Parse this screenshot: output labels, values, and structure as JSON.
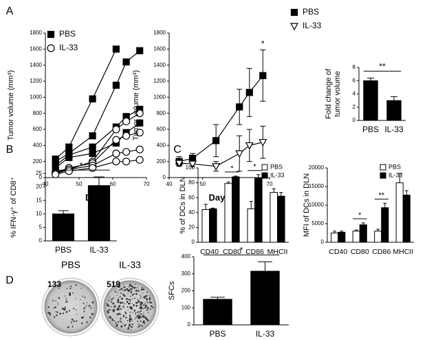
{
  "chart_data": [
    {
      "type": "line",
      "panel": "A",
      "ylabel": "Tumor volume (mm³)",
      "xlabel": "Days",
      "xlim": [
        40,
        70
      ],
      "xticks": [
        40,
        50,
        60,
        70
      ],
      "ylim": [
        0,
        1800
      ],
      "yticks": [
        0,
        200,
        400,
        600,
        800,
        1000,
        1200,
        1400,
        1600,
        1800
      ],
      "series": [
        {
          "name": "PBS",
          "marker": "filled-square",
          "color": "#000000",
          "subjects": [
            {
              "x": [
                43,
                47,
                54,
                61
              ],
              "values": [
                230,
                380,
                980,
                1600
              ]
            },
            {
              "x": [
                43,
                47,
                54,
                61,
                64,
                68
              ],
              "values": [
                200,
                300,
                520,
                1150,
                1440,
                1580
              ]
            },
            {
              "x": [
                43,
                47,
                54,
                61,
                64,
                68
              ],
              "values": [
                150,
                280,
                380,
                630,
                760,
                850
              ]
            },
            {
              "x": [
                43,
                47,
                54,
                61,
                64,
                68
              ],
              "values": [
                120,
                250,
                300,
                430,
                560,
                680
              ]
            }
          ]
        },
        {
          "name": "IL-33",
          "marker": "open-circle",
          "color": "#000000",
          "subjects": [
            {
              "x": [
                43,
                47,
                54,
                61,
                64,
                68
              ],
              "values": [
                60,
                100,
                200,
                600,
                700,
                800
              ]
            },
            {
              "x": [
                43,
                47,
                54,
                61,
                64,
                68
              ],
              "values": [
                60,
                120,
                180,
                470,
                520,
                560
              ]
            },
            {
              "x": [
                43,
                47,
                54,
                61,
                64,
                68
              ],
              "values": [
                50,
                100,
                150,
                300,
                320,
                350
              ]
            },
            {
              "x": [
                43,
                47,
                54,
                61,
                64,
                68
              ],
              "values": [
                40,
                80,
                120,
                200,
                200,
                220
              ]
            }
          ]
        }
      ]
    },
    {
      "type": "line",
      "ylabel": "Tumor volume (mm³)",
      "xlabel": "Days",
      "xlim": [
        40,
        70
      ],
      "xticks": [
        40,
        50,
        60,
        70
      ],
      "ylim": [
        0,
        1800
      ],
      "yticks": [
        0,
        200,
        400,
        600,
        800,
        1000,
        1200,
        1400,
        1600,
        1800
      ],
      "annotation": "*",
      "series": [
        {
          "name": "PBS",
          "marker": "filled-square",
          "color": "#000000",
          "x": [
            43,
            47,
            54,
            61,
            64,
            68
          ],
          "values": [
            200,
            240,
            460,
            880,
            1060,
            1270
          ],
          "errors": [
            60,
            60,
            200,
            220,
            300,
            320
          ]
        },
        {
          "name": "IL-33",
          "marker": "open-triangle",
          "color": "#000000",
          "x": [
            43,
            47,
            54,
            61,
            64,
            68
          ],
          "values": [
            180,
            170,
            140,
            300,
            400,
            440
          ],
          "errors": [
            30,
            30,
            60,
            220,
            200,
            200
          ]
        }
      ]
    },
    {
      "type": "bar",
      "ylabel": [
        "Fold change of",
        "tumor volume"
      ],
      "categories": [
        "PBS",
        "IL-33"
      ],
      "values": [
        6.0,
        3.0
      ],
      "errors": [
        0.4,
        0.6
      ],
      "color": "#000000",
      "annotation": "**",
      "ylim": [
        0,
        8
      ],
      "yticks": [
        0,
        2,
        4,
        6,
        8
      ]
    },
    {
      "type": "bar",
      "panel": "B",
      "ylabel": "% IFN-γ⁺ of CD8⁺",
      "categories": [
        "PBS",
        "IL-33"
      ],
      "values": [
        10,
        20.5
      ],
      "errors": [
        1.2,
        3.2
      ],
      "color": "#000000",
      "annotation": "*",
      "ylim": [
        0,
        25
      ],
      "yticks": [
        0,
        5,
        10,
        15,
        20,
        25
      ]
    },
    {
      "type": "grouped-bar",
      "panel": "C",
      "ylabel": "% of DCs in DLN",
      "categories": [
        "CD40",
        "CD80",
        "CD86",
        "MHCII"
      ],
      "series": [
        {
          "name": "PBS",
          "color": "#ffffff",
          "values": [
            44,
            79,
            45,
            67
          ],
          "errors": [
            7,
            2,
            10,
            5
          ]
        },
        {
          "name": "IL-33",
          "color": "#000000",
          "values": [
            45,
            88,
            86,
            62
          ],
          "errors": [
            1,
            1,
            5,
            5
          ]
        }
      ],
      "annotations": [
        "*",
        "*"
      ],
      "ylim": [
        0,
        100
      ],
      "yticks": [
        0,
        20,
        40,
        60,
        80,
        100
      ]
    },
    {
      "type": "grouped-bar",
      "ylabel": "MFI of DCs in DLN",
      "categories": [
        "CD40",
        "CD80",
        "CD86",
        "MHCII"
      ],
      "series": [
        {
          "name": "PBS",
          "color": "#ffffff",
          "values": [
            2500,
            3000,
            3000,
            16000
          ],
          "errors": [
            500,
            300,
            500,
            2500
          ]
        },
        {
          "name": "IL-33",
          "color": "#000000",
          "values": [
            2700,
            4700,
            9300,
            12700
          ],
          "errors": [
            300,
            500,
            1200,
            1200
          ]
        }
      ],
      "annotations": [
        "*",
        "**"
      ],
      "ylim": [
        0,
        20000
      ],
      "yticks": [
        0,
        5000,
        10000,
        15000,
        20000
      ]
    },
    {
      "type": "bar",
      "ylabel": "SFCs",
      "categories": [
        "PBS",
        "IL-33"
      ],
      "values": [
        150,
        315
      ],
      "errors": [
        12,
        55
      ],
      "color": "#000000",
      "annotation": "*",
      "ylim": [
        0,
        400
      ],
      "yticks": [
        0,
        100,
        200,
        300,
        400
      ]
    }
  ],
  "wells": {
    "panel": "D",
    "items": [
      {
        "label": "PBS",
        "count": 133
      },
      {
        "label": "IL-33",
        "count": 519
      }
    ]
  }
}
